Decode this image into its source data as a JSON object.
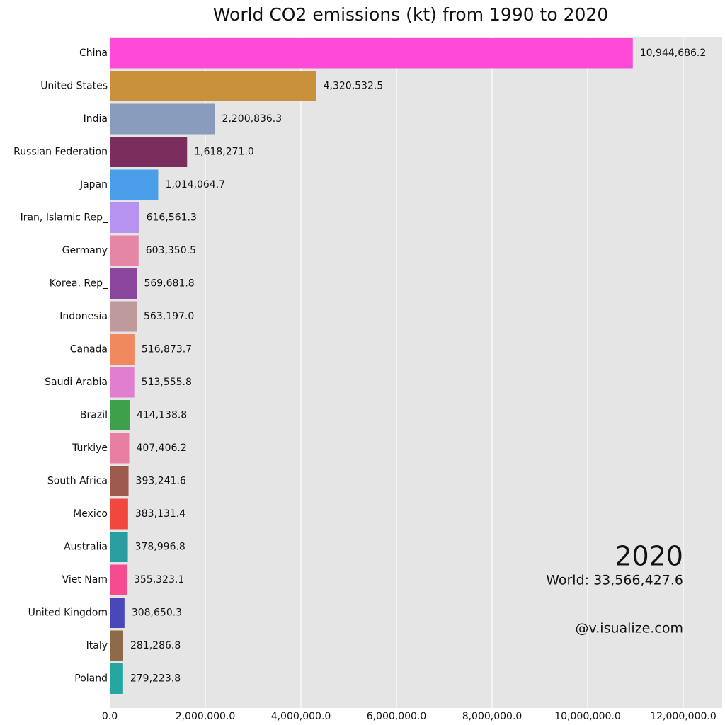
{
  "chart_data": {
    "type": "bar",
    "orientation": "horizontal",
    "title": "World CO2 emissions (kt) from 1990 to 2020",
    "categories": [
      "China",
      "United States",
      "India",
      "Russian Federation",
      "Japan",
      "Iran, Islamic Rep_",
      "Germany",
      "Korea, Rep_",
      "Indonesia",
      "Canada",
      "Saudi Arabia",
      "Brazil",
      "Turkiye",
      "South Africa",
      "Mexico",
      "Australia",
      "Viet Nam",
      "United Kingdom",
      "Italy",
      "Poland"
    ],
    "values": [
      10944686.2,
      4320532.5,
      2200836.3,
      1618271.0,
      1014064.7,
      616561.3,
      603350.5,
      569681.8,
      563197.0,
      516873.7,
      513555.8,
      414138.8,
      407406.2,
      393241.6,
      383131.4,
      378996.8,
      355323.1,
      308650.3,
      281286.8,
      279223.8
    ],
    "value_labels": [
      "10,944,686.2",
      "4,320,532.5",
      "2,200,836.3",
      "1,618,271.0",
      "1,014,064.7",
      "616,561.3",
      "603,350.5",
      "569,681.8",
      "563,197.0",
      "516,873.7",
      "513,555.8",
      "414,138.8",
      "407,406.2",
      "393,241.6",
      "383,131.4",
      "378,996.8",
      "355,323.1",
      "308,650.3",
      "281,286.8",
      "279,223.8"
    ],
    "colors": [
      "#ff4ad8",
      "#c8913a",
      "#8a9cbd",
      "#7b2d5e",
      "#4a9de8",
      "#b693ee",
      "#e586a6",
      "#8b469e",
      "#bf9a9d",
      "#f08a5e",
      "#e07fd0",
      "#3ea04a",
      "#e77fa3",
      "#9e5a4c",
      "#f0473f",
      "#2a9da0",
      "#f64b8e",
      "#4848b8",
      "#8c6b49",
      "#26a6a0"
    ],
    "xlim": [
      0,
      12700000
    ],
    "xticks": [
      {
        "value": 0,
        "label": "0.0"
      },
      {
        "value": 2000000,
        "label": "2,000,000.0"
      },
      {
        "value": 4000000,
        "label": "4,000,000.0"
      },
      {
        "value": 6000000,
        "label": "6,000,000.0"
      },
      {
        "value": 8000000,
        "label": "8,000,000.0"
      },
      {
        "value": 10000000,
        "label": "10,000,000.0"
      },
      {
        "value": 12000000,
        "label": "12,000,000.0"
      }
    ],
    "grid": true,
    "annotations": {
      "year": "2020",
      "total": "World: 33,566,427.6",
      "credit": "@v.isualize.com"
    }
  }
}
